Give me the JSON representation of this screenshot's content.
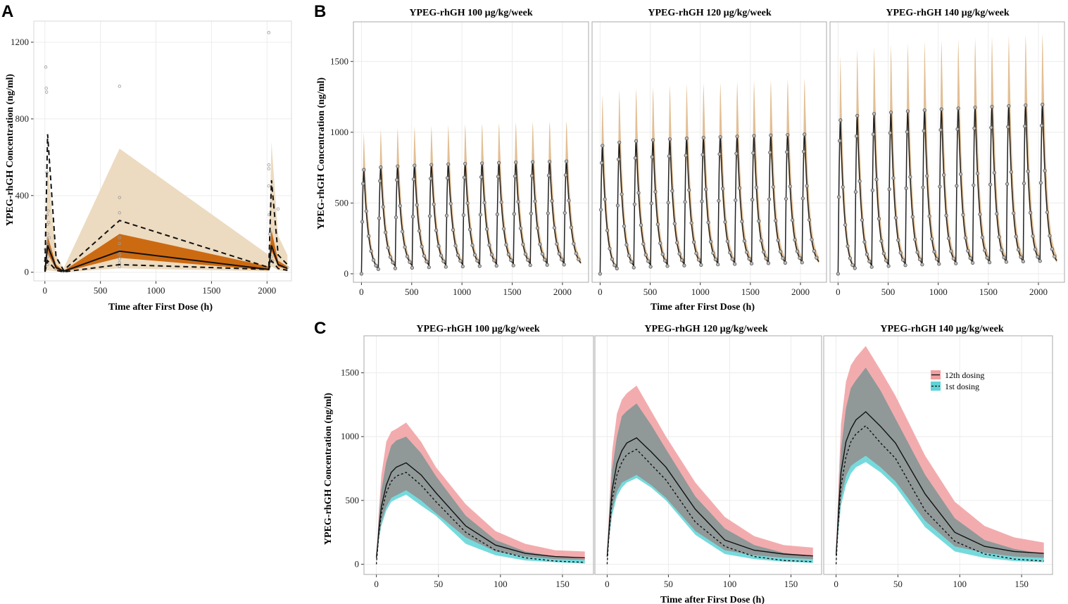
{
  "figure": {
    "panel_labels": [
      "A",
      "B",
      "C"
    ]
  },
  "colors": {
    "band_outer": "#ecdbc0",
    "band_inner": "#cc6a12",
    "pi_band": "#dfb88a",
    "band_12th": "#f19ea0",
    "band_1st": "#5ed3d6",
    "band_overlap": "#9a8585",
    "grid": "#ececec",
    "line": "#111111"
  },
  "chart_data": [
    {
      "panel": "A",
      "type": "line",
      "title": "",
      "xlabel": "Time after First Dose (h)",
      "ylabel": "YPEG-rhGH Concentration (ng/ml)",
      "xlim": [
        -100,
        2220
      ],
      "ylim": [
        -45,
        1310
      ],
      "xticks": [
        0,
        500,
        1000,
        1500,
        2000
      ],
      "yticks": [
        0,
        400,
        800,
        1200
      ],
      "grid": true,
      "median": {
        "x": [
          0,
          24,
          100,
          168,
          672,
          2016,
          2040,
          2100,
          2184
        ],
        "y": [
          5,
          140,
          25,
          5,
          110,
          15,
          140,
          40,
          20
        ]
      },
      "p5": {
        "x": [
          0,
          24,
          100,
          168,
          672,
          2016,
          2040,
          2100,
          2184
        ],
        "y": [
          2,
          60,
          10,
          2,
          40,
          15,
          60,
          20,
          10
        ]
      },
      "p95": {
        "x": [
          0,
          24,
          100,
          168,
          672,
          2016,
          2040,
          2100,
          2184
        ],
        "y": [
          10,
          720,
          80,
          10,
          270,
          25,
          480,
          90,
          40
        ]
      },
      "outer_lo": {
        "x": [
          0,
          24,
          100,
          168,
          672,
          2016,
          2040,
          2100,
          2184
        ],
        "y": [
          0,
          10,
          5,
          0,
          20,
          5,
          30,
          10,
          5
        ]
      },
      "outer_hi": {
        "x": [
          0,
          24,
          100,
          168,
          672,
          2016,
          2040,
          2100,
          2184
        ],
        "y": [
          20,
          560,
          90,
          20,
          645,
          90,
          680,
          190,
          90
        ]
      },
      "inner_lo": {
        "x": [
          0,
          24,
          100,
          168,
          672,
          2016,
          2040,
          2100,
          2184
        ],
        "y": [
          2,
          100,
          15,
          2,
          75,
          10,
          110,
          30,
          15
        ]
      },
      "inner_hi": {
        "x": [
          0,
          24,
          100,
          168,
          672,
          2016,
          2040,
          2100,
          2184
        ],
        "y": [
          8,
          190,
          40,
          8,
          200,
          30,
          220,
          60,
          30
        ]
      },
      "observed": {
        "x": [
          2,
          5,
          8,
          12,
          15,
          18,
          20,
          22,
          24,
          24,
          24,
          24,
          24,
          30,
          34,
          40,
          48,
          72,
          96,
          168,
          672,
          672,
          672,
          672,
          672,
          672,
          672,
          672,
          672,
          672,
          2016,
          2016,
          2016,
          2016,
          2020,
          2024,
          2030,
          2040,
          2050,
          2100,
          2184
        ],
        "y": [
          60,
          120,
          1070,
          960,
          940,
          520,
          300,
          250,
          200,
          150,
          100,
          80,
          40,
          320,
          260,
          180,
          120,
          60,
          20,
          5,
          970,
          390,
          310,
          180,
          150,
          110,
          90,
          70,
          50,
          30,
          1250,
          560,
          540,
          450,
          300,
          200,
          120,
          80,
          60,
          330,
          25
        ]
      }
    },
    {
      "panel": "B",
      "type": "line",
      "titles": [
        "YPEG-rhGH 100 µg/kg/week",
        "YPEG-rhGH 120 µg/kg/week",
        "YPEG-rhGH 140 µg/kg/week"
      ],
      "xlabel": "Time after First Dose (h)",
      "ylabel": "YPEG-rhGH Concentration (ng/ml)",
      "xlim": [
        -80,
        2260
      ],
      "ylim": [
        -60,
        1780
      ],
      "xticks": [
        0,
        500,
        1000,
        1500,
        2000
      ],
      "yticks": [
        0,
        500,
        1000,
        1500
      ],
      "grid": true,
      "dose_interval_h": 168,
      "n_doses": 13,
      "series": [
        {
          "name": "100 µg/kg/week",
          "first_peak": 735,
          "last_peak": 795,
          "first_trough": 0,
          "last_trough": 45,
          "pi_high_factor": 1.36,
          "pi_low_factor": 0.86
        },
        {
          "name": "120 µg/kg/week",
          "first_peak": 905,
          "last_peak": 985,
          "first_trough": 0,
          "last_trough": 60,
          "pi_high_factor": 1.4,
          "pi_low_factor": 0.85
        },
        {
          "name": "140 µg/kg/week",
          "first_peak": 1085,
          "last_peak": 1195,
          "first_trough": 0,
          "last_trough": 70,
          "pi_high_factor": 1.42,
          "pi_low_factor": 0.85
        }
      ]
    },
    {
      "panel": "C",
      "type": "line",
      "titles": [
        "YPEG-rhGH 100 µg/kg/week",
        "YPEG-rhGH 120 µg/kg/week",
        "YPEG-rhGH 140 µg/kg/week"
      ],
      "xlabel": "Time after First Dose (h)",
      "ylabel": "YPEG-rhGH Concentration (ng/ml)",
      "xlim": [
        -10,
        175
      ],
      "ylim": [
        -80,
        1790
      ],
      "xticks": [
        0,
        50,
        100,
        150
      ],
      "yticks": [
        0,
        500,
        1000,
        1500
      ],
      "grid": true,
      "x": [
        0,
        1,
        2,
        4,
        8,
        12,
        16,
        24,
        36,
        48,
        72,
        96,
        120,
        144,
        168
      ],
      "legend": {
        "labels": [
          "12th dosing",
          "1st dosing"
        ],
        "position": "top-right"
      },
      "series": [
        {
          "dose": "100 µg/kg/week",
          "12th": {
            "median": [
              50,
              150,
              270,
              450,
              620,
              720,
              760,
              795,
              700,
              560,
              300,
              150,
              85,
              60,
              50
            ],
            "lo": [
              40,
              110,
              200,
              330,
              450,
              520,
              540,
              580,
              500,
              400,
              210,
              100,
              60,
              40,
              35
            ],
            "hi": [
              60,
              230,
              420,
              700,
              960,
              1040,
              1060,
              1110,
              960,
              760,
              470,
              260,
              160,
              110,
              100
            ]
          },
          "1st": {
            "median": [
              0,
              120,
              240,
              400,
              560,
              650,
              690,
              720,
              620,
              490,
              250,
              110,
              50,
              25,
              15
            ],
            "lo": [
              0,
              100,
              190,
              300,
              420,
              490,
              510,
              545,
              460,
              380,
              160,
              70,
              30,
              15,
              5
            ],
            "hi": [
              0,
              200,
              360,
              580,
              800,
              930,
              970,
              1000,
              870,
              690,
              380,
              190,
              100,
              60,
              40
            ]
          }
        },
        {
          "dose": "120 µg/kg/week",
          "12th": {
            "median": [
              60,
              190,
              340,
              580,
              790,
              890,
              950,
              990,
              880,
              760,
              430,
              190,
              110,
              80,
              65
            ],
            "lo": [
              50,
              140,
              250,
              420,
              570,
              640,
              660,
              700,
              620,
              520,
              260,
              110,
              70,
              50,
              40
            ],
            "hi": [
              70,
              300,
              520,
              880,
              1180,
              1290,
              1340,
              1400,
              1200,
              1000,
              640,
              370,
              220,
              150,
              130
            ]
          },
          "1st": {
            "median": [
              0,
              160,
              290,
              500,
              700,
              800,
              860,
              900,
              780,
              660,
              330,
              140,
              60,
              30,
              20
            ],
            "lo": [
              0,
              130,
              230,
              380,
              530,
              600,
              640,
              675,
              600,
              500,
              230,
              80,
              40,
              20,
              10
            ],
            "hi": [
              0,
              250,
              440,
              740,
              1000,
              1160,
              1200,
              1260,
              1090,
              900,
              530,
              280,
              150,
              90,
              60
            ]
          }
        },
        {
          "dose": "140 µg/kg/week",
          "12th": {
            "median": [
              70,
              230,
              420,
              720,
              960,
              1060,
              1130,
              1195,
              1080,
              950,
              550,
              250,
              140,
              100,
              85
            ],
            "lo": [
              55,
              170,
              300,
              510,
              690,
              770,
              800,
              850,
              760,
              650,
              340,
              140,
              90,
              60,
              50
            ],
            "hi": [
              85,
              360,
              650,
              1100,
              1430,
              1560,
              1620,
              1710,
              1520,
              1320,
              850,
              490,
              300,
              210,
              170
            ]
          },
          "1st": {
            "median": [
              0,
              190,
              350,
              610,
              840,
              960,
              1020,
              1085,
              950,
              830,
              420,
              180,
              80,
              40,
              25
            ],
            "lo": [
              0,
              150,
              270,
              460,
              620,
              710,
              760,
              800,
              720,
              610,
              290,
              100,
              50,
              25,
              15
            ],
            "hi": [
              0,
              300,
              540,
              900,
              1220,
              1380,
              1440,
              1540,
              1360,
              1140,
              700,
              360,
              190,
              120,
              80
            ]
          }
        }
      ]
    }
  ]
}
